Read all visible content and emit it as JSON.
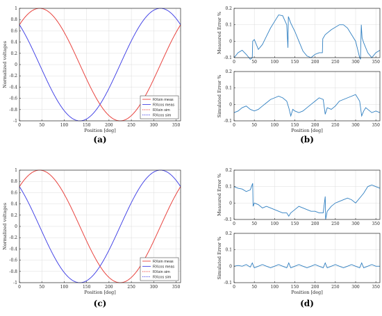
{
  "chart_data": [
    {
      "id": "a",
      "type": "line",
      "caption": "(a)",
      "xlabel": "Position [deg]",
      "ylabel": "Normalized voltages",
      "xlim": [
        0,
        360
      ],
      "ylim": [
        -1,
        1
      ],
      "xticks": [
        0,
        50,
        100,
        150,
        200,
        250,
        300,
        350
      ],
      "yticks": [
        -1,
        -0.8,
        -0.6,
        -0.4,
        -0.2,
        0,
        0.2,
        0.4,
        0.6,
        0.8,
        1
      ],
      "grid": true,
      "legend": "bottom-right",
      "series": [
        {
          "name": "RXsin meas",
          "color": "#e8413c",
          "style": "solid",
          "formula": "sin(x+45)"
        },
        {
          "name": "RXcos meas",
          "color": "#4545e6",
          "style": "solid",
          "formula": "cos(x+45)"
        },
        {
          "name": "RXsin sim",
          "color": "#e8413c",
          "style": "dotted",
          "formula": "sin(x+45)"
        },
        {
          "name": "RXcos sim",
          "color": "#4545e6",
          "style": "dotted",
          "formula": "cos(x+45)"
        }
      ]
    },
    {
      "id": "b_top",
      "type": "line",
      "caption": "",
      "xlabel": "",
      "ylabel": "Measured Error %",
      "xlim": [
        0,
        360
      ],
      "ylim": [
        -0.1,
        0.2
      ],
      "xticks": [
        0,
        50,
        100,
        150,
        200,
        250,
        300,
        350
      ],
      "yticks": [
        -0.1,
        0,
        0.1,
        0.2
      ],
      "grid": true,
      "series": [
        {
          "color": "#2f7fc1",
          "x": [
            0,
            10,
            20,
            30,
            40,
            45,
            46,
            50,
            55,
            60,
            70,
            80,
            90,
            100,
            110,
            120,
            130,
            133,
            134,
            140,
            150,
            160,
            170,
            180,
            190,
            200,
            210,
            218,
            219,
            225,
            240,
            260,
            270,
            280,
            290,
            300,
            310,
            312,
            314,
            316,
            320,
            330,
            340,
            350,
            360
          ],
          "y": [
            -0.1,
            -0.07,
            -0.055,
            -0.08,
            -0.11,
            -0.1,
            0.0,
            0.01,
            -0.02,
            -0.05,
            -0.02,
            0.03,
            0.08,
            0.12,
            0.16,
            0.155,
            0.1,
            -0.04,
            0.15,
            0.11,
            0.06,
            0.0,
            -0.06,
            -0.09,
            -0.1,
            -0.08,
            -0.07,
            -0.07,
            0.015,
            0.04,
            0.07,
            0.1,
            0.1,
            0.08,
            0.04,
            0.0,
            -0.1,
            -0.11,
            0.1,
            0.02,
            -0.01,
            -0.07,
            -0.1,
            -0.07,
            -0.055
          ]
        }
      ]
    },
    {
      "id": "b_bottom",
      "type": "line",
      "caption": "(b)",
      "xlabel": "Position [deg]",
      "ylabel": "Simulated Error %",
      "xlim": [
        0,
        360
      ],
      "ylim": [
        -0.1,
        0.2
      ],
      "xticks": [
        0,
        50,
        100,
        150,
        200,
        250,
        300,
        350
      ],
      "yticks": [
        -0.1,
        0,
        0.1,
        0.2
      ],
      "grid": true,
      "series": [
        {
          "color": "#2f7fc1",
          "x": [
            0,
            10,
            20,
            30,
            40,
            50,
            60,
            70,
            80,
            90,
            100,
            110,
            120,
            130,
            135,
            140,
            145,
            150,
            160,
            170,
            180,
            190,
            200,
            210,
            220,
            225,
            230,
            240,
            250,
            260,
            270,
            280,
            290,
            300,
            310,
            315,
            320,
            325,
            330,
            340,
            350,
            360
          ],
          "y": [
            -0.05,
            -0.04,
            -0.02,
            -0.01,
            -0.03,
            -0.04,
            -0.03,
            -0.01,
            0.01,
            0.03,
            0.04,
            0.05,
            0.04,
            0.02,
            -0.02,
            -0.07,
            -0.03,
            -0.04,
            -0.05,
            -0.04,
            -0.02,
            0.0,
            0.02,
            0.04,
            0.03,
            -0.06,
            -0.02,
            -0.03,
            -0.01,
            0.02,
            0.03,
            0.04,
            0.05,
            0.06,
            0.02,
            -0.07,
            -0.04,
            -0.02,
            -0.03,
            -0.05,
            -0.04,
            -0.05
          ]
        }
      ]
    },
    {
      "id": "c",
      "type": "line",
      "caption": "(c)",
      "xlabel": "Position [deg]",
      "ylabel": "Normalized voltages",
      "xlim": [
        0,
        360
      ],
      "ylim": [
        -1,
        1
      ],
      "xticks": [
        0,
        50,
        100,
        150,
        200,
        250,
        300,
        350
      ],
      "yticks": [
        -1,
        -0.8,
        -0.6,
        -0.4,
        -0.2,
        0,
        0.2,
        0.4,
        0.6,
        0.8,
        1
      ],
      "grid": true,
      "legend": "bottom-right",
      "series": [
        {
          "name": "RXsin meas",
          "color": "#e8413c",
          "style": "solid",
          "formula": "sin(x+45)"
        },
        {
          "name": "RXcos meas",
          "color": "#4545e6",
          "style": "solid",
          "formula": "cos(x+45)"
        },
        {
          "name": "RXsin sim",
          "color": "#e8413c",
          "style": "dotted",
          "formula": "sin(x+45)"
        },
        {
          "name": "RXcos sim",
          "color": "#4545e6",
          "style": "dotted",
          "formula": "cos(x+45)"
        }
      ]
    },
    {
      "id": "d_top",
      "type": "line",
      "caption": "",
      "xlabel": "",
      "ylabel": "Measured Error %",
      "xlim": [
        0,
        360
      ],
      "ylim": [
        -0.1,
        0.2
      ],
      "xticks": [
        0,
        50,
        100,
        150,
        200,
        250,
        300,
        350
      ],
      "yticks": [
        -0.1,
        0,
        0.1,
        0.2
      ],
      "grid": true,
      "series": [
        {
          "color": "#2f7fc1",
          "x": [
            0,
            10,
            20,
            30,
            40,
            46,
            47,
            50,
            60,
            70,
            80,
            90,
            100,
            110,
            120,
            130,
            135,
            140,
            150,
            160,
            170,
            180,
            190,
            200,
            210,
            220,
            225,
            226,
            230,
            240,
            250,
            260,
            270,
            280,
            290,
            300,
            310,
            320,
            330,
            340,
            350,
            360
          ],
          "y": [
            0.1,
            0.09,
            0.085,
            0.07,
            0.08,
            0.12,
            -0.02,
            0.0,
            -0.01,
            -0.03,
            -0.02,
            -0.03,
            -0.04,
            -0.05,
            -0.06,
            -0.06,
            -0.08,
            -0.06,
            -0.04,
            -0.02,
            -0.03,
            -0.04,
            -0.05,
            -0.05,
            -0.06,
            -0.06,
            0.04,
            -0.1,
            -0.05,
            -0.02,
            0.0,
            0.01,
            0.02,
            0.03,
            0.02,
            0.0,
            0.03,
            0.06,
            0.1,
            0.11,
            0.1,
            0.09
          ]
        }
      ]
    },
    {
      "id": "d_bottom",
      "type": "line",
      "caption": "(d)",
      "xlabel": "Position [deg]",
      "ylabel": "Simulated Error %",
      "xlim": [
        0,
        360
      ],
      "ylim": [
        -0.1,
        0.2
      ],
      "xticks": [
        0,
        50,
        100,
        150,
        200,
        250,
        300,
        350
      ],
      "yticks": [
        -0.1,
        0,
        0.1,
        0.2
      ],
      "grid": true,
      "series": [
        {
          "color": "#2f7fc1",
          "x": [
            0,
            10,
            20,
            30,
            40,
            45,
            50,
            60,
            70,
            80,
            90,
            100,
            110,
            120,
            130,
            135,
            140,
            150,
            160,
            170,
            180,
            190,
            200,
            210,
            220,
            225,
            230,
            240,
            250,
            260,
            270,
            280,
            290,
            300,
            310,
            315,
            320,
            330,
            340,
            350,
            360
          ],
          "y": [
            0.0,
            0.005,
            0.0,
            0.01,
            -0.005,
            0.02,
            -0.01,
            0.0,
            0.01,
            0.0,
            -0.01,
            0.0,
            0.01,
            0.0,
            -0.01,
            0.02,
            -0.01,
            0.0,
            0.01,
            0.0,
            -0.01,
            0.0,
            0.01,
            0.0,
            -0.01,
            0.02,
            -0.01,
            0.0,
            0.01,
            0.0,
            -0.01,
            0.0,
            0.01,
            0.0,
            -0.01,
            0.02,
            -0.01,
            0.0,
            0.01,
            0.0,
            0.0
          ]
        }
      ]
    }
  ]
}
